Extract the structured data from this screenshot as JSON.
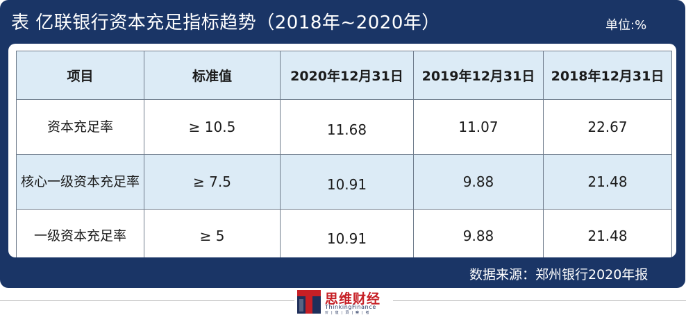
{
  "header": {
    "title": "表 亿联银行资本充足指标趋势（2018年~2020年）",
    "unit": "单位:%"
  },
  "table": {
    "columns": [
      "项目",
      "标准值",
      "2020年12月31日",
      "2019年12月31日",
      "2018年12月31日"
    ],
    "rows": [
      {
        "item": "资本充足率",
        "standard": "≥ 10.5",
        "y2020": "11.68",
        "y2019": "11.07",
        "y2018": "22.67"
      },
      {
        "item": "核心一级资本充足率",
        "standard": "≥ 7.5",
        "y2020": "10.91",
        "y2019": "9.88",
        "y2018": "21.48"
      },
      {
        "item": "一级资本充足率",
        "standard": "≥ 5",
        "y2020": "10.91",
        "y2019": "9.88",
        "y2018": "21.48"
      }
    ]
  },
  "source": "数据来源：郑州银行2020年报",
  "logo": {
    "name_cn": "思维财经",
    "name_en": "ThinkingFinance",
    "tagline": "价 | 值 | 洞 | 察 | 者"
  },
  "colors": {
    "panel": "#1a3566",
    "header_row": "#dcebf6",
    "brand_red": "#c61f25"
  }
}
